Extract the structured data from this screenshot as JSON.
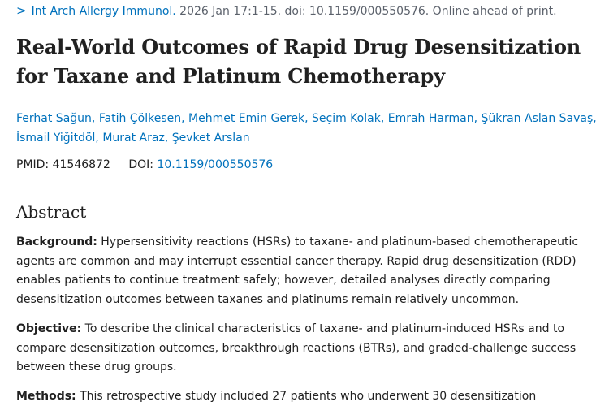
{
  "citation": {
    "journal": "Int Arch Allergy Immunol.",
    "rest": " 2026 Jan 17:1-15. doi: 10.1159/000550576. Online ahead of print."
  },
  "title": "Real-World Outcomes of Rapid Drug Desensitization for Taxane and Platinum Chemotherapy",
  "authors": [
    "Ferhat Sağun",
    "Fatih Çölkesen",
    "Mehmet Emin Gerek",
    "Seçim Kolak",
    "Emrah Harman",
    "Şükran Aslan Savaş",
    "İsmail Yiğitdöl",
    "Murat Araz",
    "Şevket Arslan"
  ],
  "identifiers": {
    "pmid_label": "PMID:",
    "pmid": "41546872",
    "doi_label": "DOI:",
    "doi": "10.1159/000550576"
  },
  "abstract": {
    "heading": "Abstract",
    "background_label": "Background:",
    "background_text": " Hypersensitivity reactions (HSRs) to taxane- and platinum-based chemotherapeutic agents are common and may interrupt essential cancer therapy. Rapid drug desensitization (RDD) enables patients to continue treatment safely; however, detailed analyses directly comparing desensitization outcomes between taxanes and platinums remain relatively uncommon.",
    "objective_label": "Objective:",
    "objective_text": " To describe the clinical characteristics of taxane- and platinum-induced HSRs and to compare desensitization outcomes, breakthrough reactions (BTRs), and graded-challenge success between these drug groups.",
    "methods_label": "Methods:",
    "methods_text": " This retrospective study included 27 patients who underwent 30 desensitization"
  }
}
